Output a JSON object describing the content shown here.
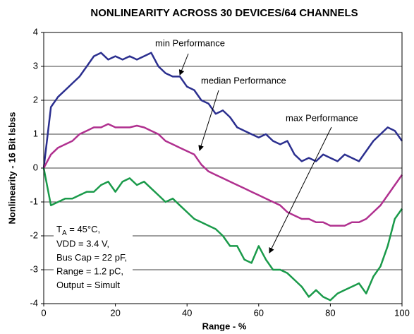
{
  "chart_data": {
    "type": "line",
    "title": "NONLINEARITY ACROSS 30 DEVICES/64 CHANNELS",
    "xlabel": "Range - %",
    "ylabel": "Nonlinearity - 16 Bit lsbss",
    "x": [
      0,
      2,
      4,
      6,
      8,
      10,
      12,
      14,
      16,
      18,
      20,
      22,
      24,
      26,
      28,
      30,
      32,
      34,
      36,
      38,
      40,
      42,
      44,
      46,
      48,
      50,
      52,
      54,
      56,
      58,
      60,
      62,
      64,
      66,
      68,
      70,
      72,
      74,
      76,
      78,
      80,
      82,
      84,
      86,
      88,
      90,
      92,
      94,
      96,
      98,
      100
    ],
    "series": [
      {
        "name": "min Performance",
        "color": "#2b2f8f",
        "values": [
          0,
          1.8,
          2.1,
          2.3,
          2.5,
          2.7,
          3.0,
          3.3,
          3.4,
          3.2,
          3.3,
          3.2,
          3.3,
          3.2,
          3.3,
          3.4,
          3.0,
          2.8,
          2.7,
          2.7,
          2.4,
          2.3,
          2.0,
          1.9,
          1.6,
          1.7,
          1.5,
          1.2,
          1.1,
          1.0,
          0.9,
          1.0,
          0.8,
          0.7,
          0.8,
          0.4,
          0.2,
          0.3,
          0.2,
          0.4,
          0.3,
          0.2,
          0.4,
          0.3,
          0.2,
          0.5,
          0.8,
          1.0,
          1.2,
          1.1,
          0.8
        ]
      },
      {
        "name": "median Performance",
        "color": "#b0308f",
        "values": [
          0,
          0.4,
          0.6,
          0.7,
          0.8,
          1.0,
          1.1,
          1.2,
          1.2,
          1.3,
          1.2,
          1.2,
          1.2,
          1.25,
          1.2,
          1.1,
          1.0,
          0.8,
          0.7,
          0.6,
          0.5,
          0.4,
          0.1,
          -0.1,
          -0.2,
          -0.3,
          -0.4,
          -0.5,
          -0.6,
          -0.7,
          -0.8,
          -0.9,
          -1.0,
          -1.1,
          -1.3,
          -1.4,
          -1.5,
          -1.5,
          -1.6,
          -1.6,
          -1.7,
          -1.7,
          -1.7,
          -1.6,
          -1.6,
          -1.5,
          -1.3,
          -1.1,
          -0.8,
          -0.5,
          -0.2
        ]
      },
      {
        "name": "max Performance",
        "color": "#1a9a4a",
        "values": [
          0,
          -1.1,
          -1.0,
          -0.9,
          -0.9,
          -0.8,
          -0.7,
          -0.7,
          -0.5,
          -0.4,
          -0.7,
          -0.4,
          -0.3,
          -0.5,
          -0.4,
          -0.6,
          -0.8,
          -1.0,
          -0.9,
          -1.1,
          -1.3,
          -1.5,
          -1.6,
          -1.7,
          -1.8,
          -2.0,
          -2.3,
          -2.3,
          -2.7,
          -2.8,
          -2.3,
          -2.7,
          -3.0,
          -3.0,
          -3.1,
          -3.3,
          -3.5,
          -3.8,
          -3.6,
          -3.8,
          -3.9,
          -3.7,
          -3.6,
          -3.5,
          -3.4,
          -3.7,
          -3.2,
          -2.9,
          -2.3,
          -1.5,
          -1.2
        ]
      }
    ],
    "note": {
      "first": [
        "T",
        "A",
        " = 45°C,"
      ],
      "lines": [
        "VDD = 3.4 V,",
        "Bus Cap = 22 pF,",
        "Range = 1.2 pC,",
        "Output = Simult"
      ]
    },
    "xlim": [
      0,
      100
    ],
    "xticks": [
      0,
      20,
      40,
      60,
      80,
      100
    ],
    "ylim": [
      -4,
      4
    ],
    "yticks": [
      -4,
      -3,
      -2,
      -1,
      0,
      1,
      2,
      3,
      4
    ],
    "grid": true
  }
}
